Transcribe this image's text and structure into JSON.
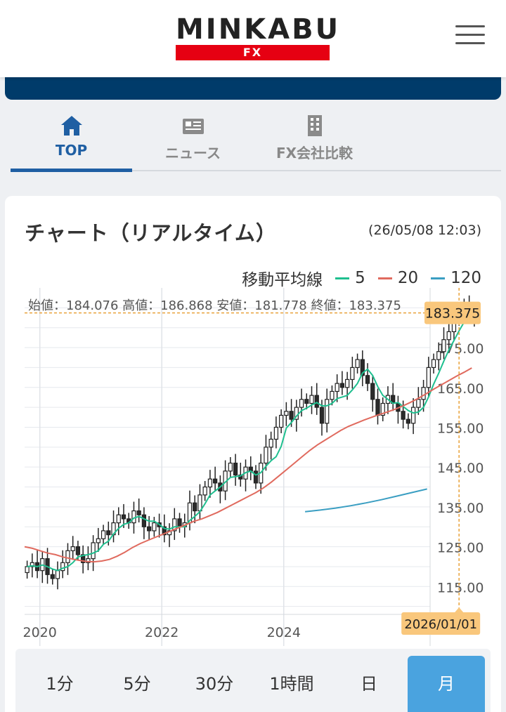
{
  "header": {
    "logo_main": "MINKABU",
    "logo_sub": "FX"
  },
  "tabs": [
    {
      "label": "TOP",
      "icon": "home-icon",
      "active": true
    },
    {
      "label": "ニュース",
      "icon": "news-icon",
      "active": false
    },
    {
      "label": "FX会社比較",
      "icon": "building-icon",
      "active": false
    }
  ],
  "card": {
    "title": "チャート（リアルタイム）",
    "timestamp": "(26/05/08 12:03)",
    "legend": {
      "label": "移動平均線",
      "items": [
        {
          "name": "5",
          "color": "#1fbf8f"
        },
        {
          "name": "20",
          "color": "#e06a5e"
        },
        {
          "name": "120",
          "color": "#3a9ec2"
        }
      ]
    },
    "ohlc_text": "始値：184.076 高値：186.868 安値：181.778 終値：183.375"
  },
  "chart_data": {
    "type": "candlestick",
    "current_price_label": "183.375",
    "crosshair_date_label": "2026/01/01",
    "x_tick_labels": [
      "2020",
      "2022",
      "2024"
    ],
    "y_tick_labels": [
      "175.00",
      "165.00",
      "155.00",
      "145.00",
      "135.00",
      "125.00",
      "115.00"
    ],
    "y_ticks": [
      175,
      165,
      155,
      145,
      135,
      125,
      115
    ],
    "ylim": [
      108,
      190
    ],
    "xlim": [
      2019.75,
      2026.4
    ],
    "x_start": 2019.75,
    "x_step": 0.08333,
    "closes": [
      120,
      121,
      119,
      122,
      118,
      117,
      119,
      121,
      124,
      125,
      123,
      121,
      122,
      126,
      127,
      129,
      128,
      131,
      133,
      132,
      131,
      134,
      133,
      130,
      129,
      131,
      130,
      128,
      129,
      132,
      130,
      131,
      136,
      134,
      138,
      140,
      142,
      141,
      139,
      144,
      146,
      143,
      142,
      145,
      144,
      141,
      146,
      150,
      152,
      155,
      158,
      159,
      157,
      160,
      162,
      161,
      163,
      160,
      156,
      162,
      164,
      166,
      165,
      167,
      170,
      172,
      168,
      166,
      162,
      158,
      161,
      163,
      161,
      159,
      157,
      156,
      160,
      162,
      165,
      170,
      172,
      174,
      177,
      179,
      182,
      184,
      185,
      184,
      183.375
    ],
    "ma5": [
      120,
      120.2,
      120,
      120.4,
      120,
      119.4,
      119,
      119.6,
      120,
      121,
      122.4,
      122.8,
      123,
      123.4,
      124,
      125.6,
      126.4,
      128.2,
      129.6,
      130.6,
      131,
      132.2,
      132.6,
      132,
      131.4,
      131.4,
      130.6,
      129.6,
      129.4,
      130,
      130,
      130,
      131.6,
      132.6,
      133.8,
      135.8,
      138,
      139,
      140,
      141.2,
      142.4,
      142.6,
      142.8,
      143.6,
      144,
      143,
      143.6,
      145.2,
      146.6,
      147.6,
      150.2,
      154.8,
      156.2,
      157.8,
      159.2,
      159.8,
      160.6,
      161.2,
      160.4,
      160.4,
      161,
      162.2,
      162.6,
      163,
      164.4,
      166,
      168.6,
      169.6,
      168,
      165.2,
      163,
      162,
      161,
      161.2,
      160.2,
      159.2,
      158.6,
      158.8,
      160,
      162.6,
      165.8,
      168.6,
      171.6,
      174.4,
      176.8,
      179.2,
      181.4,
      182.8,
      183.8
    ],
    "ma20": [
      125,
      124.6,
      124,
      123.4,
      123,
      122.4,
      122,
      121.6,
      121.3,
      121.2,
      121.4,
      121.8,
      122.6,
      123.6,
      124.8,
      125.8,
      126.6,
      127.4,
      128.2,
      129,
      129.8,
      130.6,
      131.4,
      132,
      132.8,
      133.6,
      134.6,
      135.6,
      136.6,
      137.6,
      138.6,
      139.8,
      141.2,
      142.8,
      144.4,
      146,
      147.6,
      149.2,
      150.6,
      151.8,
      153,
      154.2,
      155.2,
      156,
      156.8,
      157.5,
      158.2,
      158.8,
      159.5,
      160.3,
      161.2,
      162.2,
      163.3,
      164.5,
      165.6,
      166.7,
      167.8,
      168.8,
      169.9
    ],
    "ma20_start_index": 0,
    "ma120_x": [
      2024.35,
      2024.6,
      2024.85,
      2025.1,
      2025.35,
      2025.6,
      2025.85,
      2026.1,
      2026.35
    ],
    "ma120_values": [
      133.8,
      134.2,
      134.7,
      135.3,
      136,
      136.8,
      137.7,
      138.6,
      139.5
    ]
  },
  "periods": [
    {
      "label": "1分",
      "active": false
    },
    {
      "label": "5分",
      "active": false
    },
    {
      "label": "30分",
      "active": false
    },
    {
      "label": "1時間",
      "active": false
    },
    {
      "label": "日",
      "active": false
    },
    {
      "label": "月",
      "active": true
    }
  ]
}
